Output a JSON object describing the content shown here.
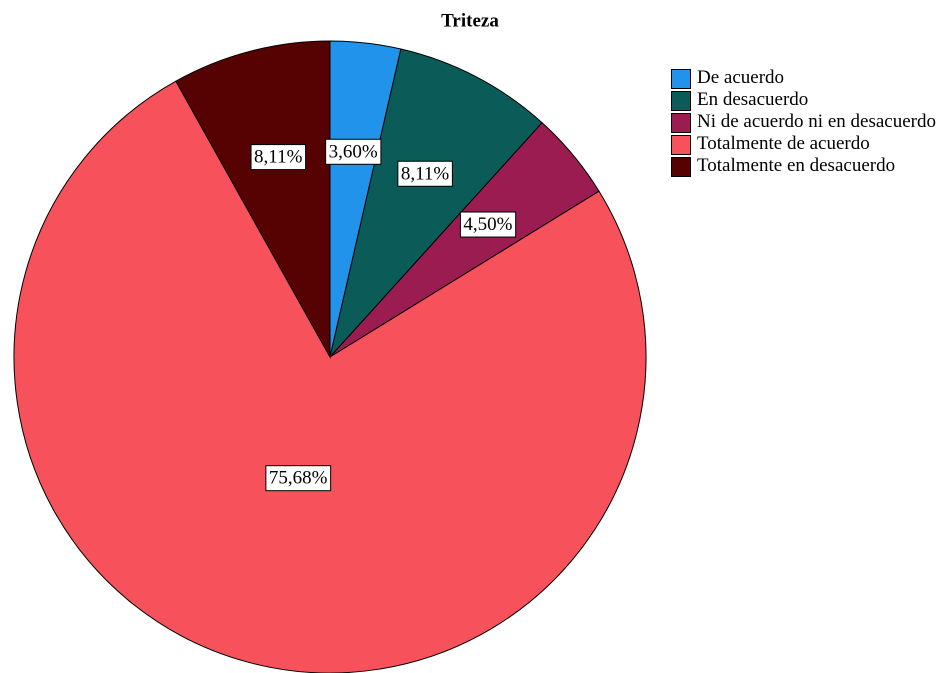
{
  "chart_data": {
    "type": "pie",
    "title": "Triteza",
    "categories": [
      "De acuerdo",
      "En desacuerdo",
      "Ni de acuerdo ni en desacuerdo",
      "Totalmente de acuerdo",
      "Totalmente en desacuerdo"
    ],
    "values": [
      3.6,
      8.11,
      4.5,
      75.68,
      8.11
    ],
    "value_labels": [
      "3,60%",
      "8,11%",
      "4,50%",
      "75,68%",
      "8,11%"
    ],
    "colors": [
      "#2193ea",
      "#0b5c58",
      "#9a1c50",
      "#f7525c",
      "#560202"
    ],
    "legend": "right"
  }
}
